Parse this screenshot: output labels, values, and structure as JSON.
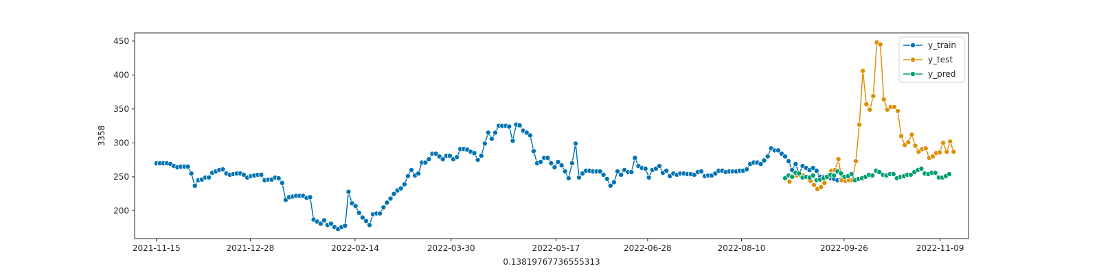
{
  "chart_data": {
    "type": "line",
    "title": "",
    "xlabel": "0.13819767736555313",
    "ylabel": "3358",
    "xlim": [
      "2021-11-05",
      "2022-11-22"
    ],
    "ylim": [
      159,
      462
    ],
    "x_ticks": [
      "2021-11-15",
      "2021-12-28",
      "2022-02-14",
      "2022-03-30",
      "2022-05-17",
      "2022-06-28",
      "2022-08-10",
      "2022-09-26",
      "2022-11-09"
    ],
    "y_ticks": [
      200,
      250,
      300,
      350,
      400,
      450
    ],
    "grid": false,
    "legend_position": "top-right",
    "series": [
      {
        "name": "y_train",
        "color": "#0173b2",
        "start_date": "2021-11-15",
        "step_days": 1.6,
        "values": [
          270,
          270,
          270,
          270,
          269,
          266,
          264,
          265,
          265,
          265,
          255,
          237,
          245,
          246,
          249,
          249,
          256,
          258,
          260,
          261,
          255,
          253,
          254,
          255,
          255,
          253,
          249,
          251,
          252,
          253,
          253,
          245,
          246,
          246,
          249,
          248,
          241,
          216,
          220,
          221,
          222,
          222,
          222,
          219,
          220,
          187,
          184,
          181,
          186,
          179,
          181,
          176,
          173,
          176,
          178,
          228,
          211,
          207,
          197,
          190,
          185,
          179,
          195,
          196,
          196,
          205,
          212,
          218,
          225,
          230,
          233,
          239,
          251,
          260,
          252,
          255,
          271,
          271,
          276,
          284,
          284,
          280,
          276,
          281,
          281,
          276,
          279,
          291,
          291,
          290,
          287,
          285,
          275,
          281,
          299,
          315,
          306,
          315,
          325,
          325,
          325,
          324,
          303,
          327,
          326,
          318,
          315,
          311,
          288,
          270,
          272,
          278,
          278,
          270,
          264,
          272,
          267,
          258,
          248,
          270,
          299,
          249,
          255,
          259,
          259,
          258,
          258,
          258,
          253,
          247,
          237,
          242,
          258,
          253,
          260,
          257,
          257,
          278,
          266,
          263,
          262,
          249,
          260,
          262,
          266,
          256,
          259,
          251,
          255,
          253,
          255,
          255,
          254,
          254,
          253,
          257,
          258,
          251,
          252,
          252,
          255,
          259,
          259,
          257,
          258,
          258,
          258,
          259,
          259,
          261,
          269,
          271,
          271,
          269,
          274,
          280,
          292,
          289,
          289,
          284,
          280,
          273,
          260,
          269,
          254,
          266,
          263,
          260,
          263,
          259,
          250,
          250,
          250,
          248,
          247,
          245,
          246,
          246,
          247
        ]
      },
      {
        "name": "y_test",
        "color": "#de8f05",
        "start_date": "2022-09-01",
        "step_days": 1.6,
        "values": [
          243,
          250,
          252,
          253,
          252,
          249,
          244,
          238,
          232,
          235,
          241,
          252,
          259,
          260,
          276,
          245,
          244,
          245,
          245,
          273,
          327,
          406,
          357,
          349,
          369,
          448,
          445,
          364,
          349,
          353,
          353,
          347,
          310,
          297,
          301,
          312,
          296,
          287,
          291,
          292,
          278,
          280,
          285,
          286,
          300,
          287,
          302,
          287
        ]
      },
      {
        "name": "y_pred",
        "color": "#029e73",
        "start_date": "2022-08-30",
        "step_days": 1.6,
        "values": [
          248,
          252,
          250,
          256,
          255,
          249,
          250,
          249,
          252,
          245,
          246,
          248,
          250,
          253,
          252,
          258,
          255,
          250,
          251,
          254,
          245,
          247,
          248,
          250,
          253,
          252,
          259,
          257,
          253,
          252,
          254,
          254,
          248,
          250,
          251,
          253,
          253,
          257,
          260,
          262,
          255,
          254,
          256,
          256,
          249,
          249,
          251,
          254
        ]
      }
    ]
  }
}
